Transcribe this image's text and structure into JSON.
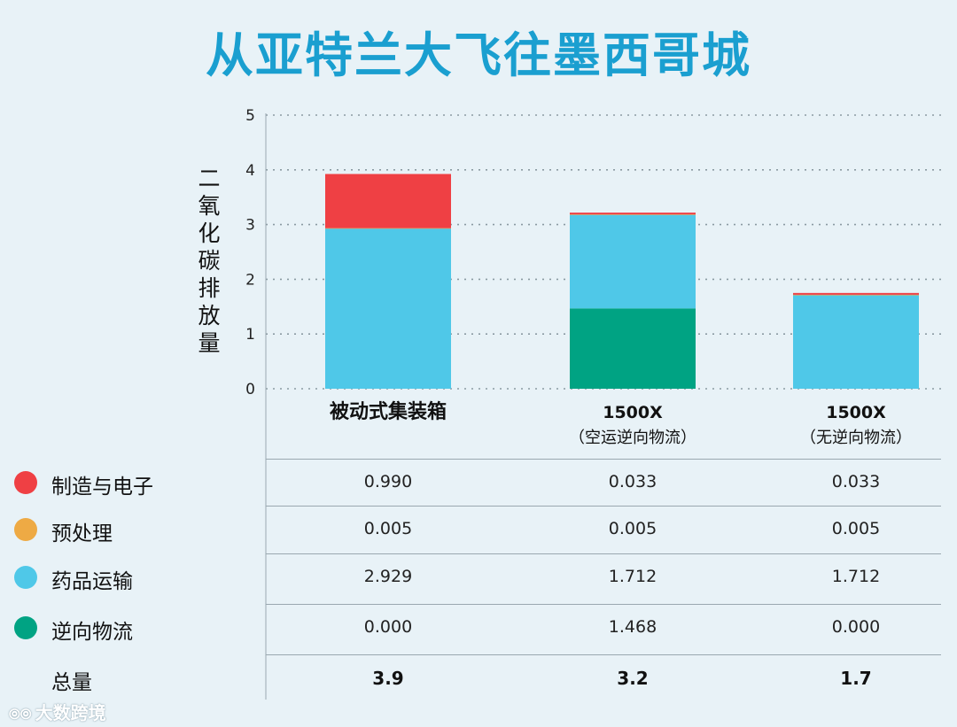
{
  "title": "从亚特兰大飞往墨西哥城",
  "chart_data": {
    "type": "bar",
    "stacked": true,
    "ylabel": "二氧化碳排放量",
    "ylim": [
      0,
      5
    ],
    "yticks": [
      0,
      1,
      2,
      3,
      4,
      5
    ],
    "grid": true,
    "categories": [
      {
        "line1": "被动式集装箱",
        "line2": ""
      },
      {
        "line1": "1500X",
        "line2": "（空运逆向物流）"
      },
      {
        "line1": "1500X",
        "line2": "（无逆向物流）"
      }
    ],
    "series": [
      {
        "name": "逆向物流",
        "color": "#00a383",
        "values": [
          0.0,
          1.468,
          0.0
        ]
      },
      {
        "name": "药品运输",
        "color": "#4fc8e8",
        "values": [
          2.929,
          1.712,
          1.712
        ]
      },
      {
        "name": "预处理",
        "color": "#eeaa44",
        "values": [
          0.005,
          0.005,
          0.005
        ]
      },
      {
        "name": "制造与电子",
        "color": "#ef4044",
        "values": [
          0.99,
          0.033,
          0.033
        ]
      }
    ]
  },
  "table": {
    "rows": [
      {
        "label": "制造与电子",
        "color": "#ef4044",
        "cells": [
          "0.990",
          "0.033",
          "0.033"
        ]
      },
      {
        "label": "预处理",
        "color": "#eeaa44",
        "cells": [
          "0.005",
          "0.005",
          "0.005"
        ]
      },
      {
        "label": "药品运输",
        "color": "#4fc8e8",
        "cells": [
          "2.929",
          "1.712",
          "1.712"
        ]
      },
      {
        "label": "逆向物流",
        "color": "#00a383",
        "cells": [
          "0.000",
          "1.468",
          "0.000"
        ]
      }
    ],
    "total": {
      "label": "总量",
      "cells": [
        "3.9",
        "3.2",
        "1.7"
      ]
    }
  },
  "watermark": "大数跨境"
}
